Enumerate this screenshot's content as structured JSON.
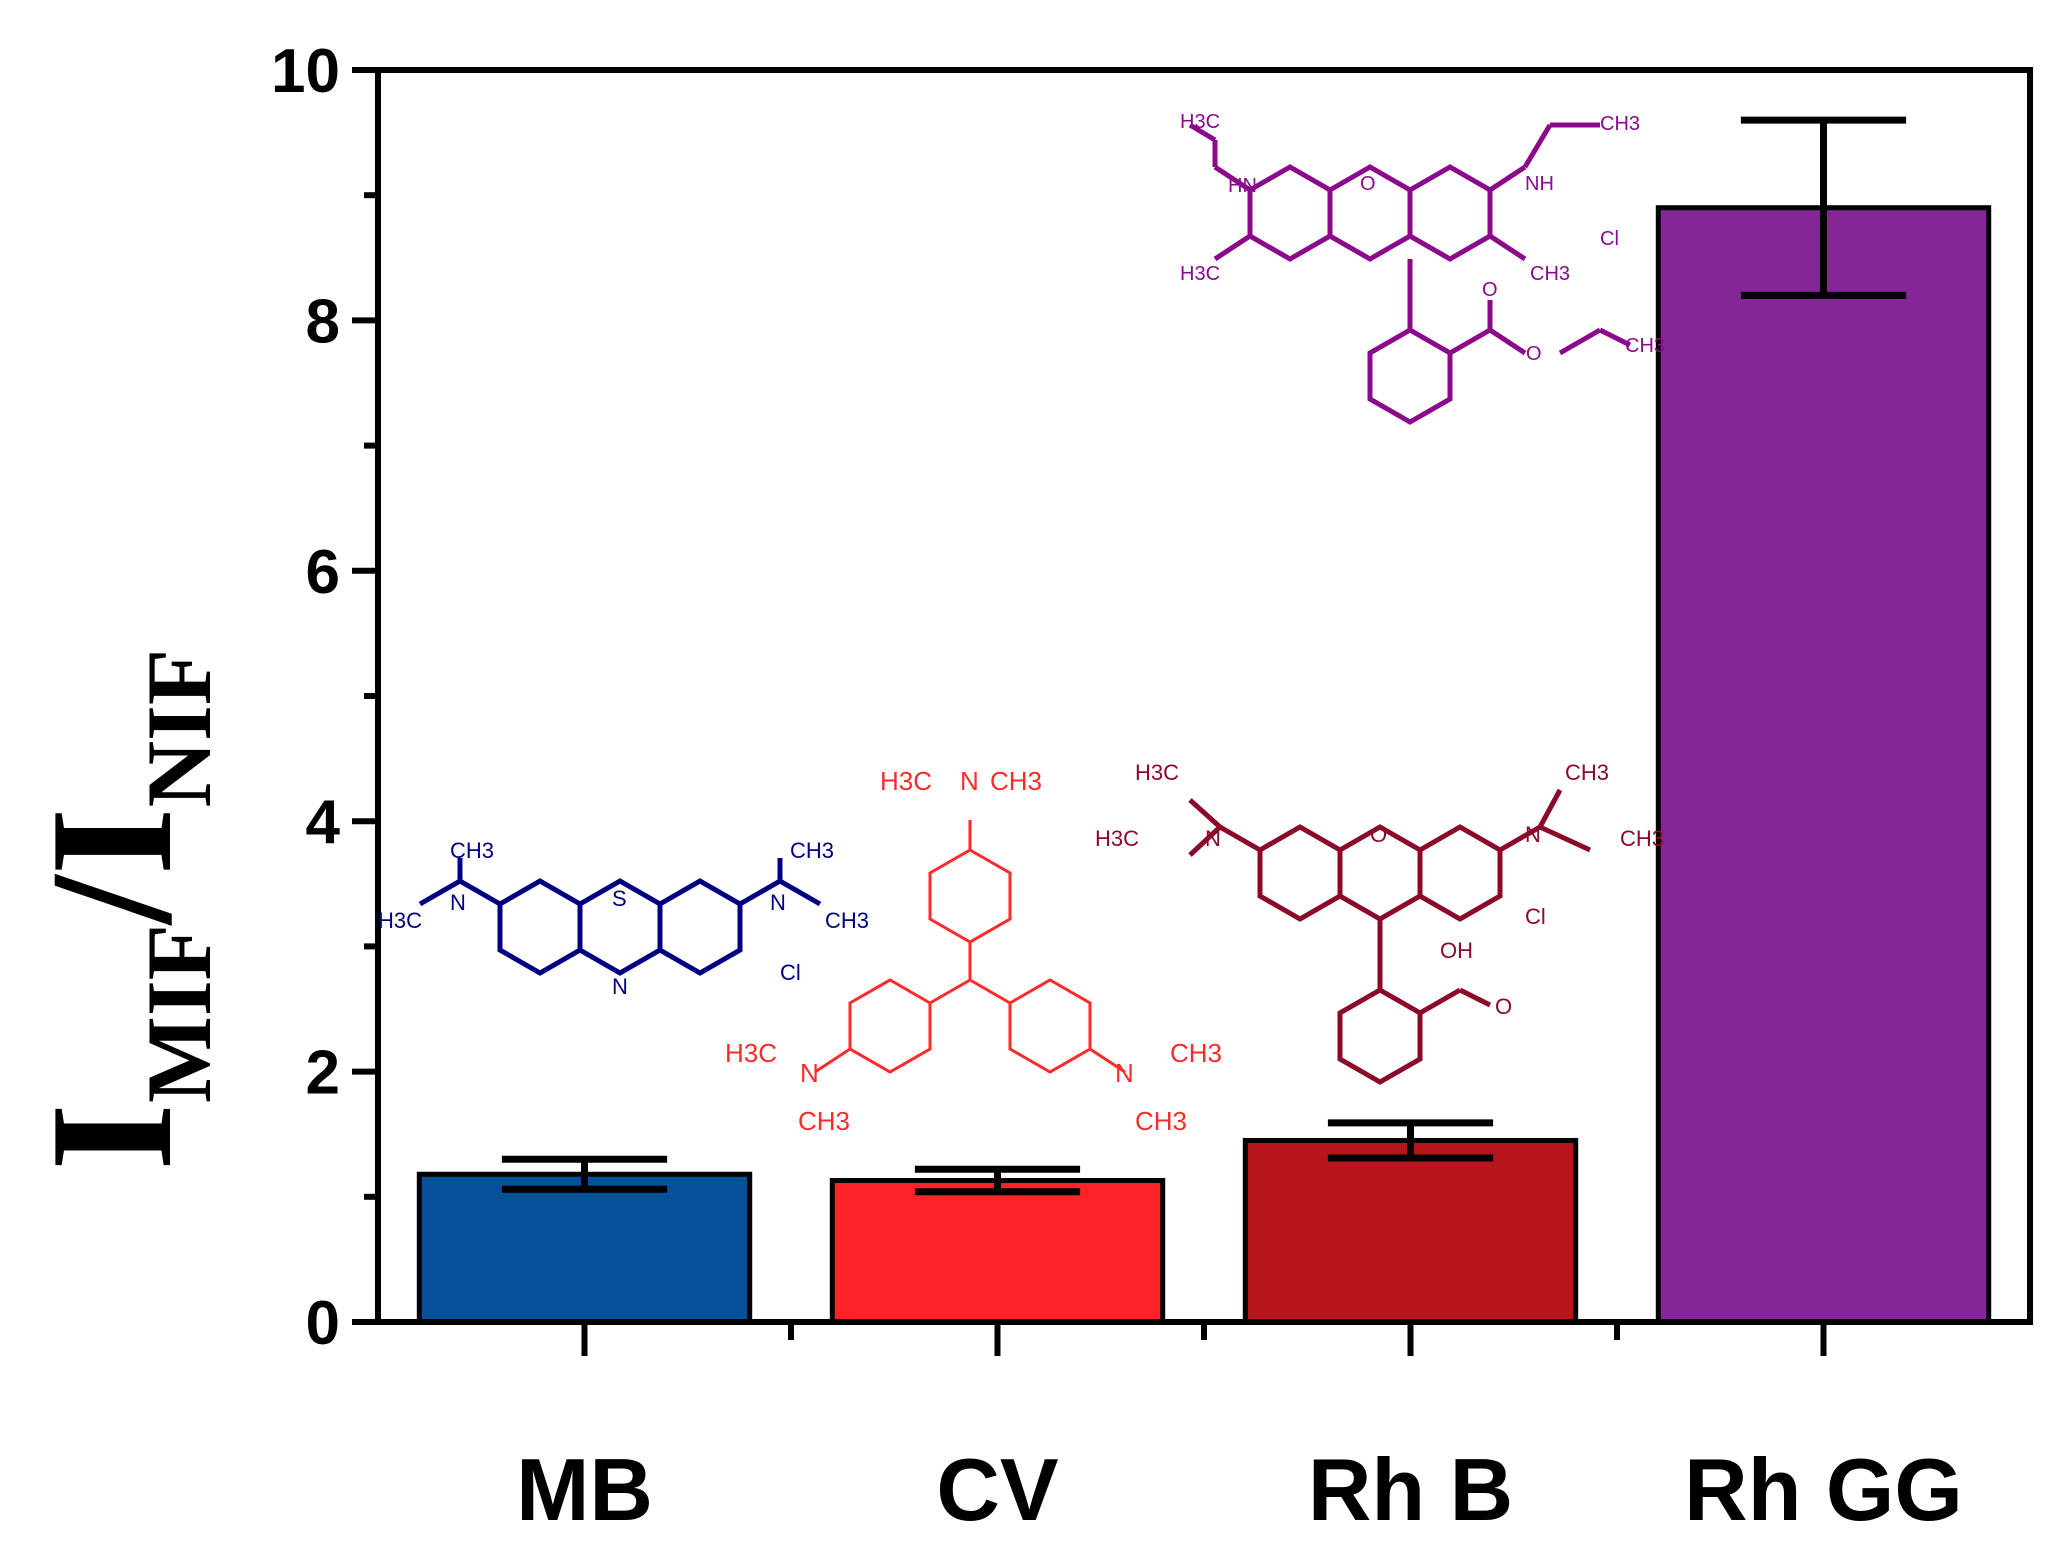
{
  "chart_data": {
    "type": "bar",
    "categories": [
      "MB",
      "CV",
      "Rh B",
      "Rh GG"
    ],
    "values": [
      1.18,
      1.13,
      1.45,
      8.9
    ],
    "errors": [
      0.12,
      0.09,
      0.14,
      0.7
    ],
    "colors": [
      "#06519A",
      "#FF2228",
      "#B7141C",
      "#852697"
    ],
    "ylabel_main_1": "I",
    "ylabel_sub_1": "MIF",
    "ylabel_main_2": "/I",
    "ylabel_sub_2": "NIF",
    "ylim": [
      0,
      10
    ],
    "yticks": [
      0,
      2,
      4,
      6,
      8,
      10
    ],
    "ytick_labels": [
      "0",
      "2",
      "4",
      "6",
      "8",
      "10"
    ],
    "grid": false,
    "structures": {
      "MB": {
        "color": "#000080",
        "labels": [
          "CH3",
          "N",
          "H3C",
          "S",
          "N",
          "N",
          "CH3",
          "CH3",
          "Cl"
        ]
      },
      "CV": {
        "color": "#FF2A2A",
        "labels": [
          "H3C",
          "N",
          "CH3",
          "H3C",
          "N",
          "CH3",
          "N",
          "CH3",
          "CH3"
        ]
      },
      "RhB": {
        "color": "#8B0A2A",
        "labels": [
          "H3C",
          "H3C",
          "N",
          "O",
          "N",
          "CH3",
          "CH3",
          "Cl",
          "OH",
          "O"
        ]
      },
      "RhGG": {
        "color": "#8B0A8B",
        "labels": [
          "H3C",
          "HN",
          "O",
          "NH",
          "CH3",
          "Cl",
          "H3C",
          "CH3",
          "O",
          "O",
          "CH3"
        ]
      }
    }
  }
}
